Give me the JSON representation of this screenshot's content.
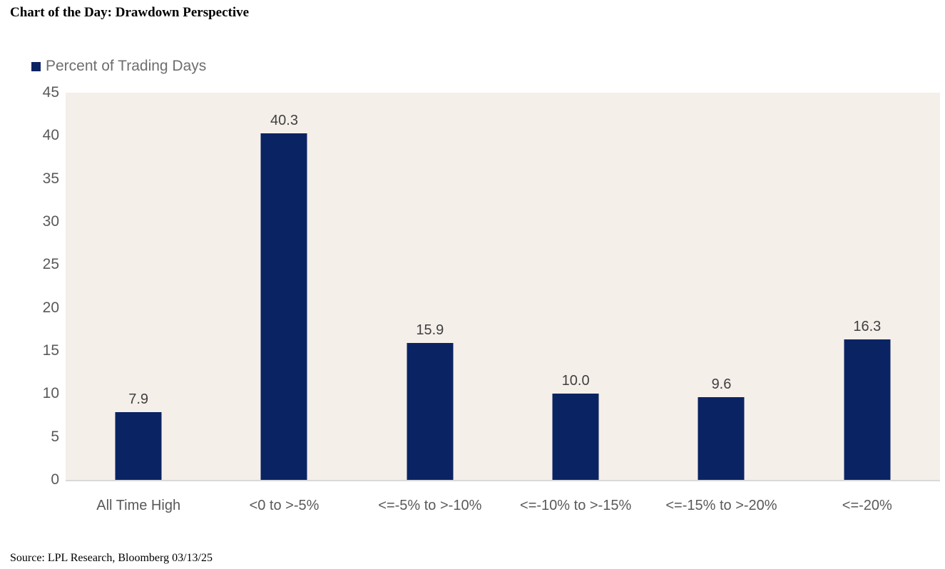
{
  "header": {
    "title": "Chart of the Day: Drawdown Perspective"
  },
  "chart_data": {
    "type": "bar",
    "title": "Chart of the Day: Drawdown Perspective",
    "legend_entries": [
      "Percent of Trading Days"
    ],
    "legend_position": "top-left",
    "categories": [
      "All Time High",
      "<0 to >-5%",
      "<=-5% to >-10%",
      "<=-10% to >-15%",
      "<=-15% to >-20%",
      "<=-20%"
    ],
    "values": [
      7.9,
      40.3,
      15.9,
      10.0,
      9.6,
      16.3
    ],
    "value_labels": [
      "7.9",
      "40.3",
      "15.9",
      "10.0",
      "9.6",
      "16.3"
    ],
    "xlabel": "",
    "ylabel": "",
    "ylim": [
      0,
      45
    ],
    "yticks": [
      "45",
      "40",
      "35",
      "30",
      "25",
      "20",
      "15",
      "10",
      "5",
      "0"
    ],
    "grid": false
  },
  "legend": {
    "label": "Percent of Trading Days"
  },
  "footer": {
    "source": "Source: LPL Research, Bloomberg 03/13/25"
  },
  "colors": {
    "bar": "#0A2463",
    "plot_background": "#F5EFE9",
    "axis_label": "#595959",
    "data_label": "#404040",
    "legend_text": "#6E6E6E",
    "baseline": "#D9D9D9",
    "title_text": "#000000"
  }
}
